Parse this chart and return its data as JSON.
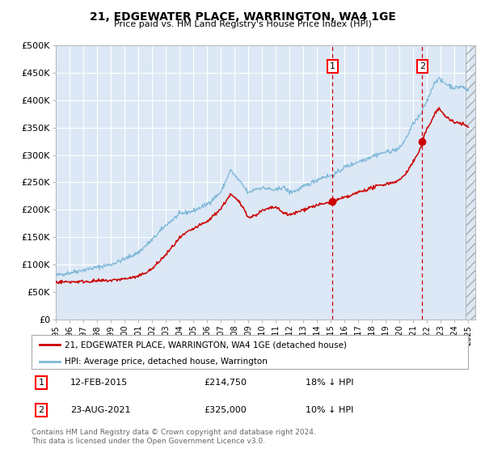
{
  "title": "21, EDGEWATER PLACE, WARRINGTON, WA4 1GE",
  "subtitle": "Price paid vs. HM Land Registry's House Price Index (HPI)",
  "xlim": [
    1995.0,
    2025.5
  ],
  "ylim": [
    0,
    500000
  ],
  "yticks": [
    0,
    50000,
    100000,
    150000,
    200000,
    250000,
    300000,
    350000,
    400000,
    450000,
    500000
  ],
  "ytick_labels": [
    "£0",
    "£50K",
    "£100K",
    "£150K",
    "£200K",
    "£250K",
    "£300K",
    "£350K",
    "£400K",
    "£450K",
    "£500K"
  ],
  "xtick_years": [
    1995,
    1996,
    1997,
    1998,
    1999,
    2000,
    2001,
    2002,
    2003,
    2004,
    2005,
    2006,
    2007,
    2008,
    2009,
    2010,
    2011,
    2012,
    2013,
    2014,
    2015,
    2016,
    2017,
    2018,
    2019,
    2020,
    2021,
    2022,
    2023,
    2024,
    2025
  ],
  "hpi_color": "#7db8d8",
  "price_color": "#cc0000",
  "sale1_x": 2015.12,
  "sale1_y": 214750,
  "sale2_x": 2021.64,
  "sale2_y": 325000,
  "marker_color": "#cc0000",
  "dashed_line_color": "#cc0000",
  "bg_color": "#dce8f5",
  "grid_color": "#ffffff",
  "legend_line1": "21, EDGEWATER PLACE, WARRINGTON, WA4 1GE (detached house)",
  "legend_line2": "HPI: Average price, detached house, Warrington",
  "table_row1_date": "12-FEB-2015",
  "table_row1_price": "£214,750",
  "table_row1_hpi": "18% ↓ HPI",
  "table_row2_date": "23-AUG-2021",
  "table_row2_price": "£325,000",
  "table_row2_hpi": "10% ↓ HPI",
  "footnote": "Contains HM Land Registry data © Crown copyright and database right 2024.\nThis data is licensed under the Open Government Licence v3.0.",
  "hpi_anchors": [
    [
      1995.0,
      80000
    ],
    [
      1996.0,
      85000
    ],
    [
      1997.0,
      90000
    ],
    [
      1998.0,
      95000
    ],
    [
      1999.0,
      100000
    ],
    [
      2000.0,
      110000
    ],
    [
      2001.0,
      122000
    ],
    [
      2002.0,
      145000
    ],
    [
      2003.0,
      172000
    ],
    [
      2004.0,
      192000
    ],
    [
      2005.0,
      198000
    ],
    [
      2006.0,
      210000
    ],
    [
      2007.0,
      232000
    ],
    [
      2007.7,
      272000
    ],
    [
      2008.5,
      248000
    ],
    [
      2009.0,
      230000
    ],
    [
      2009.5,
      238000
    ],
    [
      2010.0,
      240000
    ],
    [
      2010.5,
      238000
    ],
    [
      2011.0,
      235000
    ],
    [
      2011.5,
      242000
    ],
    [
      2012.0,
      232000
    ],
    [
      2012.5,
      235000
    ],
    [
      2013.0,
      242000
    ],
    [
      2013.5,
      248000
    ],
    [
      2014.0,
      255000
    ],
    [
      2014.5,
      260000
    ],
    [
      2015.0,
      262000
    ],
    [
      2015.5,
      268000
    ],
    [
      2016.0,
      278000
    ],
    [
      2016.5,
      282000
    ],
    [
      2017.0,
      288000
    ],
    [
      2017.5,
      292000
    ],
    [
      2018.0,
      298000
    ],
    [
      2018.5,
      302000
    ],
    [
      2019.0,
      305000
    ],
    [
      2019.5,
      308000
    ],
    [
      2020.0,
      312000
    ],
    [
      2020.5,
      332000
    ],
    [
      2021.0,
      358000
    ],
    [
      2021.5,
      372000
    ],
    [
      2022.0,
      400000
    ],
    [
      2022.5,
      430000
    ],
    [
      2022.8,
      440000
    ],
    [
      2023.0,
      435000
    ],
    [
      2023.5,
      428000
    ],
    [
      2024.0,
      422000
    ],
    [
      2024.5,
      425000
    ],
    [
      2025.0,
      418000
    ]
  ],
  "price_anchors": [
    [
      1995.0,
      68000
    ],
    [
      1996.0,
      68500
    ],
    [
      1997.0,
      69000
    ],
    [
      1998.0,
      70000
    ],
    [
      1999.0,
      71000
    ],
    [
      2000.0,
      74000
    ],
    [
      2001.0,
      78000
    ],
    [
      2002.0,
      92000
    ],
    [
      2003.0,
      118000
    ],
    [
      2004.0,
      148000
    ],
    [
      2004.5,
      158000
    ],
    [
      2005.0,
      165000
    ],
    [
      2005.5,
      172000
    ],
    [
      2006.0,
      178000
    ],
    [
      2006.5,
      190000
    ],
    [
      2007.0,
      202000
    ],
    [
      2007.7,
      228000
    ],
    [
      2008.3,
      215000
    ],
    [
      2008.8,
      198000
    ],
    [
      2009.0,
      185000
    ],
    [
      2009.5,
      190000
    ],
    [
      2010.0,
      198000
    ],
    [
      2010.5,
      202000
    ],
    [
      2011.0,
      205000
    ],
    [
      2011.3,
      198000
    ],
    [
      2012.0,
      190000
    ],
    [
      2012.5,
      195000
    ],
    [
      2013.0,
      200000
    ],
    [
      2013.5,
      205000
    ],
    [
      2014.0,
      208000
    ],
    [
      2014.5,
      211000
    ],
    [
      2015.12,
      214750
    ],
    [
      2015.5,
      218000
    ],
    [
      2016.0,
      222000
    ],
    [
      2016.5,
      226000
    ],
    [
      2017.0,
      232000
    ],
    [
      2017.5,
      236000
    ],
    [
      2018.0,
      240000
    ],
    [
      2018.5,
      244000
    ],
    [
      2019.0,
      247000
    ],
    [
      2019.5,
      250000
    ],
    [
      2020.0,
      254000
    ],
    [
      2020.5,
      268000
    ],
    [
      2021.0,
      288000
    ],
    [
      2021.5,
      310000
    ],
    [
      2021.64,
      325000
    ],
    [
      2022.0,
      348000
    ],
    [
      2022.3,
      362000
    ],
    [
      2022.6,
      378000
    ],
    [
      2022.9,
      385000
    ],
    [
      2023.0,
      380000
    ],
    [
      2023.3,
      372000
    ],
    [
      2023.6,
      365000
    ],
    [
      2024.0,
      358000
    ],
    [
      2024.3,
      360000
    ],
    [
      2024.6,
      356000
    ],
    [
      2024.9,
      352000
    ],
    [
      2025.0,
      350000
    ]
  ]
}
